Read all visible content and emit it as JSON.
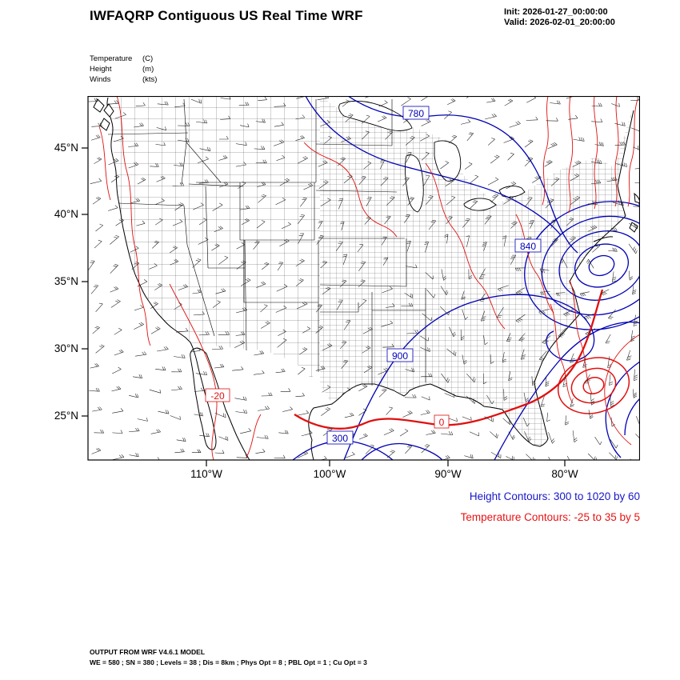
{
  "header": {
    "title": "IWFAQRP Contiguous US Real Time WRF",
    "init": "Init: 2026-01-27_00:00:00",
    "valid": "Valid: 2026-02-01_20:00:00"
  },
  "legend": {
    "rows": [
      {
        "name": "Temperature",
        "unit": "(C)"
      },
      {
        "name": "Height",
        "unit": "(m)"
      },
      {
        "name": "Winds",
        "unit": "(kts)"
      }
    ]
  },
  "map": {
    "y_ticks": [
      "45°N",
      "40°N",
      "35°N",
      "30°N",
      "25°N"
    ],
    "x_ticks": [
      "110°W",
      "100°W",
      "90°W",
      "80°W"
    ],
    "contour_labels": {
      "height": [
        "780",
        "900",
        "840",
        "300"
      ],
      "temperature": [
        "-20",
        "0"
      ]
    }
  },
  "captions": {
    "height": "Height Contours: 300 to 1020 by 60",
    "temperature": "Temperature Contours: -25 to 35 by 5"
  },
  "footer": {
    "line1": "OUTPUT FROM WRF V4.6.1 MODEL",
    "line2": "WE = 580 ; SN = 380 ; Levels = 38 ; Dis = 8km ; Phys Opt = 8 ; PBL Opt = 1 ; Cu Opt = 3"
  },
  "colors": {
    "height_contour": "#0000b4",
    "temperature_contour": "#e01010",
    "boundaries": "#000000"
  },
  "chart_data": {
    "type": "heatmap",
    "subtype": "meteorological-contour-map",
    "title": "IWFAQRP Contiguous US Real Time WRF",
    "init_time": "2026-01-27_00:00:00",
    "valid_time": "2026-02-01_20:00:00",
    "x_axis": {
      "ticks": [
        "110°W",
        "100°W",
        "90°W",
        "80°W"
      ]
    },
    "y_axis": {
      "ticks": [
        "45°N",
        "40°N",
        "35°N",
        "30°N",
        "25°N"
      ]
    },
    "fields": [
      {
        "name": "Height",
        "unit": "m",
        "style": "contours",
        "color": "blue",
        "min": 300,
        "max": 1020,
        "interval": 60,
        "visible_labels": [
          300,
          780,
          840,
          900
        ]
      },
      {
        "name": "Temperature",
        "unit": "C",
        "style": "contours",
        "color": "red",
        "min": -25,
        "max": 35,
        "interval": 5,
        "visible_labels": [
          -20,
          0
        ]
      },
      {
        "name": "Winds",
        "unit": "kts",
        "style": "wind-barbs",
        "color": "black"
      }
    ],
    "basemap": "Contiguous US with county and state boundaries, Mexico and Canada unshaded",
    "model_info": [
      "OUTPUT FROM WRF V4.6.1 MODEL",
      "WE = 580 ; SN = 380 ; Levels = 38 ; Dis = 8km ; Phys Opt = 8 ; PBL Opt = 1 ; Cu Opt = 3"
    ]
  }
}
